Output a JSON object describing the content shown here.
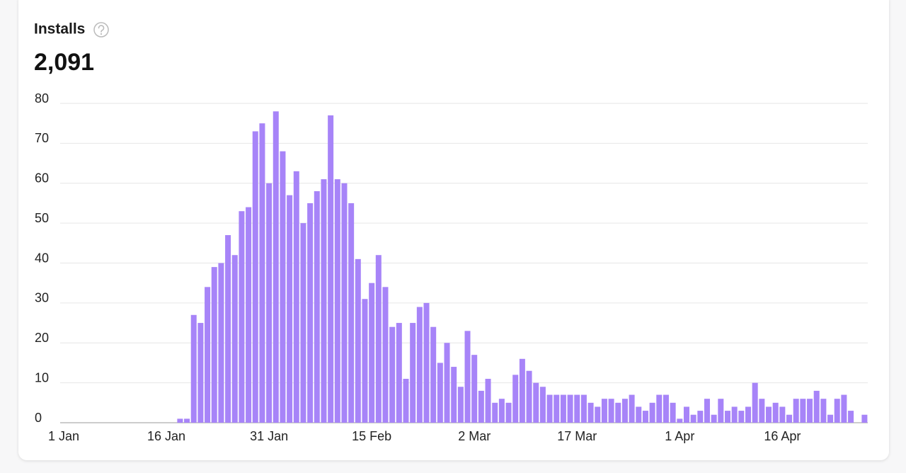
{
  "chart_data": {
    "type": "bar",
    "title": "Installs",
    "headline": "2,091",
    "categories": [
      "1 Jan",
      null,
      null,
      null,
      null,
      null,
      null,
      null,
      null,
      null,
      null,
      null,
      null,
      null,
      null,
      "16 Jan",
      null,
      null,
      null,
      null,
      null,
      null,
      null,
      null,
      null,
      null,
      null,
      null,
      null,
      null,
      "31 Jan",
      null,
      null,
      null,
      null,
      null,
      null,
      null,
      null,
      null,
      null,
      null,
      null,
      null,
      null,
      "15 Feb",
      null,
      null,
      null,
      null,
      null,
      null,
      null,
      null,
      null,
      null,
      null,
      null,
      null,
      null,
      "2 Mar",
      null,
      null,
      null,
      null,
      null,
      null,
      null,
      null,
      null,
      null,
      null,
      null,
      null,
      null,
      "17 Mar",
      null,
      null,
      null,
      null,
      null,
      null,
      null,
      null,
      null,
      null,
      null,
      null,
      null,
      null,
      "1 Apr",
      null,
      null,
      null,
      null,
      null,
      null,
      null,
      null,
      null,
      null,
      null,
      null,
      null,
      null,
      "16 Apr",
      null,
      null,
      null,
      null,
      null,
      null,
      null,
      null,
      null,
      null,
      null,
      null
    ],
    "values": [
      0,
      0,
      0,
      0,
      0,
      0,
      0,
      0,
      0,
      0,
      0,
      0,
      0,
      0,
      0,
      0,
      0,
      1,
      1,
      27,
      25,
      34,
      39,
      40,
      47,
      42,
      53,
      54,
      73,
      75,
      60,
      78,
      68,
      57,
      63,
      50,
      55,
      58,
      61,
      77,
      61,
      60,
      55,
      41,
      31,
      35,
      42,
      34,
      24,
      25,
      11,
      25,
      29,
      30,
      24,
      15,
      20,
      14,
      9,
      23,
      17,
      8,
      11,
      5,
      6,
      5,
      12,
      16,
      13,
      10,
      9,
      7,
      7,
      7,
      7,
      7,
      7,
      5,
      4,
      6,
      6,
      5,
      6,
      7,
      4,
      3,
      5,
      7,
      7,
      5,
      1,
      4,
      2,
      3,
      6,
      2,
      6,
      3,
      4,
      3,
      4,
      10,
      6,
      4,
      5,
      4,
      2,
      6,
      6,
      6,
      8,
      6,
      2,
      6,
      7,
      3,
      0,
      2
    ],
    "color": "#a784f8",
    "ylim": [
      0,
      80
    ],
    "yticks": [
      0,
      10,
      20,
      30,
      40,
      50,
      60,
      70,
      80
    ],
    "grid": true
  }
}
